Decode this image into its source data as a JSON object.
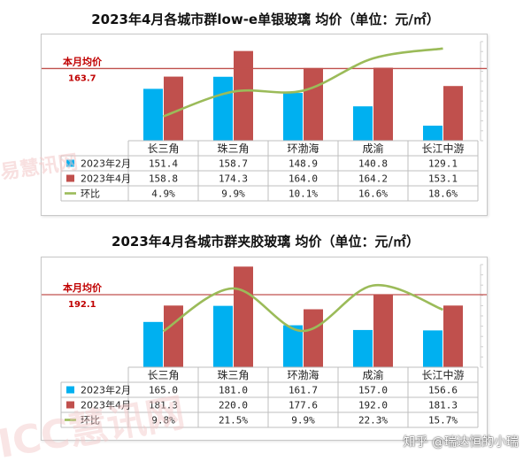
{
  "chart_data": [
    {
      "type": "bar",
      "title": "2023年4月各城市群low-e单银玻璃 均价（单位：元/㎡）",
      "categories": [
        "长三角",
        "珠三角",
        "环渤海",
        "成渝",
        "长江中游"
      ],
      "series": [
        {
          "name": "2023年2月",
          "type": "bar",
          "color": "#00b0f0",
          "values": [
            151.4,
            158.7,
            148.9,
            140.8,
            129.1
          ],
          "labels": [
            "151.4",
            "158.7",
            "148.9",
            "140.8",
            "129.1"
          ]
        },
        {
          "name": "2023年4月",
          "type": "bar",
          "color": "#c0504d",
          "values": [
            158.8,
            174.3,
            164.0,
            164.2,
            153.1
          ],
          "labels": [
            "158.8",
            "174.3",
            "164.0",
            "164.2",
            "153.1"
          ]
        },
        {
          "name": "环比",
          "type": "line",
          "color": "#9bbb59",
          "values": [
            4.9,
            9.9,
            10.1,
            16.6,
            18.6
          ],
          "labels": [
            "4.9%",
            "9.9%",
            "10.1%",
            "16.6%",
            "18.6%"
          ]
        }
      ],
      "reference_line": {
        "label": "本月均价",
        "value": 163.7,
        "value_label": "163.7",
        "color": "#c0504d"
      },
      "ylim": [
        120,
        180
      ],
      "line_ylim": [
        0,
        20
      ],
      "legend": "table-bottom"
    },
    {
      "type": "bar",
      "title": "2023年4月各城市群夹胶玻璃 均价（单位：元/㎡）",
      "categories": [
        "长三角",
        "珠三角",
        "环渤海",
        "成渝",
        "长江中游"
      ],
      "series": [
        {
          "name": "2023年2月",
          "type": "bar",
          "color": "#00b0f0",
          "values": [
            165.0,
            181.0,
            161.7,
            157.0,
            156.6
          ],
          "labels": [
            "165.0",
            "181.0",
            "161.7",
            "157.0",
            "156.6"
          ]
        },
        {
          "name": "2023年4月",
          "type": "bar",
          "color": "#c0504d",
          "values": [
            181.3,
            220.0,
            177.6,
            192.0,
            181.3
          ],
          "labels": [
            "181.3",
            "220.0",
            "177.6",
            "192.0",
            "181.3"
          ]
        },
        {
          "name": "环比",
          "type": "line",
          "color": "#9bbb59",
          "values": [
            9.8,
            21.5,
            9.9,
            22.3,
            15.7
          ],
          "labels": [
            "9.8%",
            "21.5%",
            "9.9%",
            "22.3%",
            "15.7%"
          ]
        }
      ],
      "reference_line": {
        "label": "本月均价",
        "value": 192.1,
        "value_label": "192.1",
        "color": "#c0504d"
      },
      "ylim": [
        120,
        222
      ],
      "line_ylim": [
        0,
        28
      ],
      "legend": "table-bottom"
    }
  ],
  "watermarks": [
    "易慧讯网",
    "ICC慧讯网"
  ],
  "credit": "知乎 @瑞达恒的小瑞"
}
